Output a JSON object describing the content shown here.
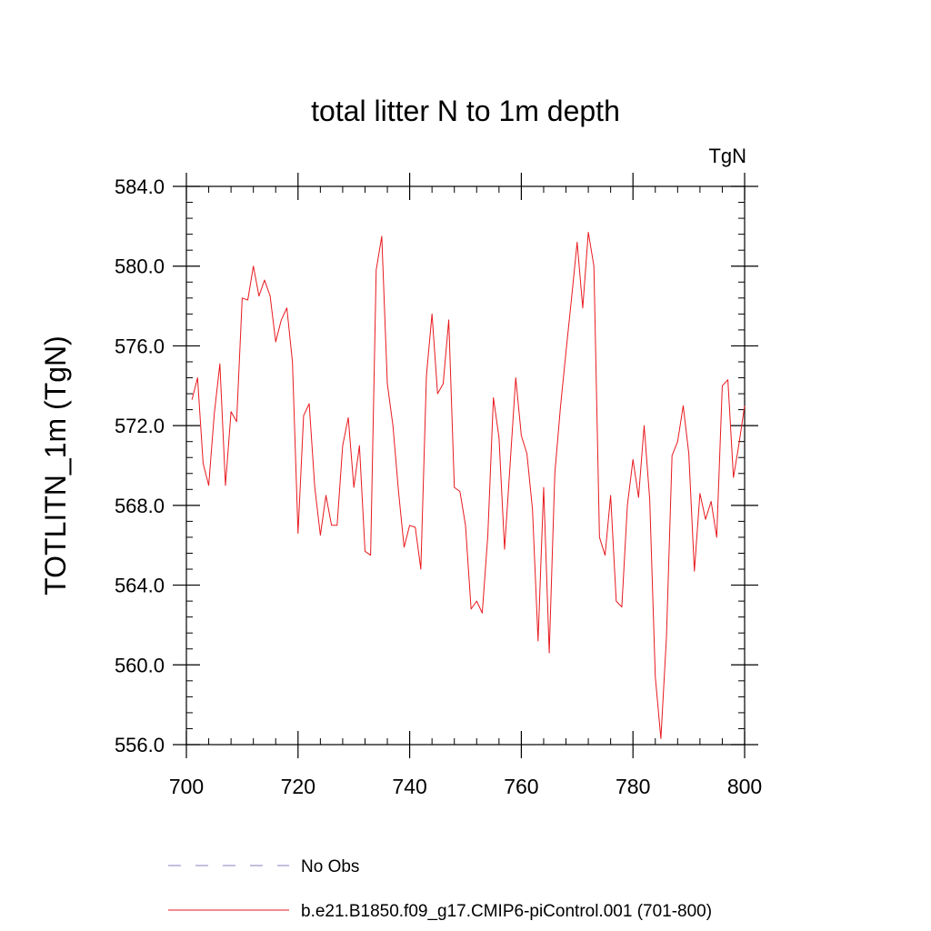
{
  "chart_data": {
    "type": "line",
    "title": "total litter N to 1m depth",
    "units": "TgN",
    "xlabel": "",
    "ylabel": "TOTLITN_1m  (TgN)",
    "xlim": [
      700,
      800
    ],
    "ylim": [
      556,
      584
    ],
    "xticks": [
      700,
      720,
      740,
      760,
      780,
      800
    ],
    "xtick_labels": [
      "700",
      "720",
      "740",
      "760",
      "780",
      "800"
    ],
    "yticks": [
      556,
      560,
      564,
      568,
      572,
      576,
      580,
      584
    ],
    "ytick_labels": [
      "556.0",
      "560.0",
      "564.0",
      "568.0",
      "572.0",
      "576.0",
      "580.0",
      "584.0"
    ],
    "legend": [
      {
        "label": "No Obs",
        "color": "#8a80c0",
        "style": "dashed"
      },
      {
        "label": "b.e21.B1850.f09_g17.CMIP6-piControl.001 (701-800)",
        "color": "#e8191e",
        "style": "solid"
      }
    ],
    "series": [
      {
        "name": "b.e21.B1850.f09_g17.CMIP6-piControl.001 (701-800)",
        "color": "#e8191e",
        "x": [
          701,
          702,
          703,
          704,
          705,
          706,
          707,
          708,
          709,
          710,
          711,
          712,
          713,
          714,
          715,
          716,
          717,
          718,
          719,
          720,
          721,
          722,
          723,
          724,
          725,
          726,
          727,
          728,
          729,
          730,
          731,
          732,
          733,
          734,
          735,
          736,
          737,
          738,
          739,
          740,
          741,
          742,
          743,
          744,
          745,
          746,
          747,
          748,
          749,
          750,
          751,
          752,
          753,
          754,
          755,
          756,
          757,
          758,
          759,
          760,
          761,
          762,
          763,
          764,
          765,
          766,
          767,
          768,
          769,
          770,
          771,
          772,
          773,
          774,
          775,
          776,
          777,
          778,
          779,
          780,
          781,
          782,
          783,
          784,
          785,
          786,
          787,
          788,
          789,
          790,
          791,
          792,
          793,
          794,
          795,
          796,
          797,
          798,
          799,
          800
        ],
        "values": [
          573.3,
          574.4,
          570.1,
          569.0,
          572.6,
          575.1,
          569.0,
          572.7,
          572.2,
          578.4,
          578.3,
          580.0,
          578.5,
          579.3,
          578.5,
          576.2,
          577.3,
          577.9,
          575.2,
          566.6,
          572.5,
          573.1,
          568.9,
          566.5,
          568.5,
          567.0,
          567.0,
          571.0,
          572.4,
          568.9,
          571.0,
          565.7,
          565.5,
          579.8,
          581.5,
          574.1,
          572.0,
          568.7,
          565.9,
          567.0,
          566.9,
          564.8,
          574.5,
          577.6,
          573.6,
          574.1,
          577.3,
          568.9,
          568.7,
          567.0,
          562.8,
          563.2,
          562.6,
          566.5,
          573.4,
          571.4,
          565.8,
          570.1,
          574.4,
          571.5,
          570.6,
          567.8,
          561.2,
          568.9,
          560.6,
          569.6,
          572.9,
          575.7,
          578.4,
          581.2,
          577.9,
          581.7,
          580.0,
          566.4,
          565.5,
          568.5,
          563.2,
          562.9,
          568.0,
          570.3,
          568.4,
          572.0,
          568.3,
          559.4,
          556.3,
          561.4,
          570.5,
          571.2,
          573.0,
          570.6,
          564.7,
          568.6,
          567.3,
          568.2,
          566.4,
          574.0,
          574.3,
          569.4,
          571.1,
          573.0
        ]
      }
    ]
  }
}
